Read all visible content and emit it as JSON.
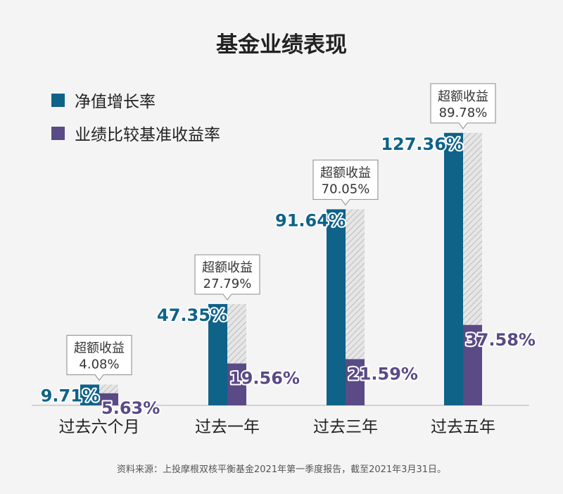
{
  "title": "基金业绩表现",
  "source_note": "资料来源：上投摩根双核平衡基金2021年第一季度报告，截至2021年3月31日。",
  "colors": {
    "nav": "#0f6288",
    "benchmark": "#5a4a85",
    "excess": "#cccccc",
    "background": "#f4f4f4"
  },
  "chart_data": {
    "type": "bar",
    "categories": [
      "过去六个月",
      "过去一年",
      "过去三年",
      "过去五年"
    ],
    "series": [
      {
        "name": "净值增长率",
        "values": [
          9.71,
          47.35,
          91.64,
          127.36
        ],
        "labels": [
          "9.71%",
          "47.35%",
          "91.64%",
          "127.36%"
        ]
      },
      {
        "name": "业绩比较基准收益率",
        "values": [
          5.63,
          19.56,
          21.59,
          37.58
        ],
        "labels": [
          "5.63%",
          "19.56%",
          "21.59%",
          "37.58%"
        ]
      }
    ],
    "excess_return": {
      "label": "超额收益",
      "values": [
        4.08,
        27.79,
        70.05,
        89.78
      ],
      "labels": [
        "4.08%",
        "27.79%",
        "70.05%",
        "89.78%"
      ]
    },
    "ylim": [
      0,
      140
    ],
    "legend_position": "top-left",
    "grid": false
  }
}
